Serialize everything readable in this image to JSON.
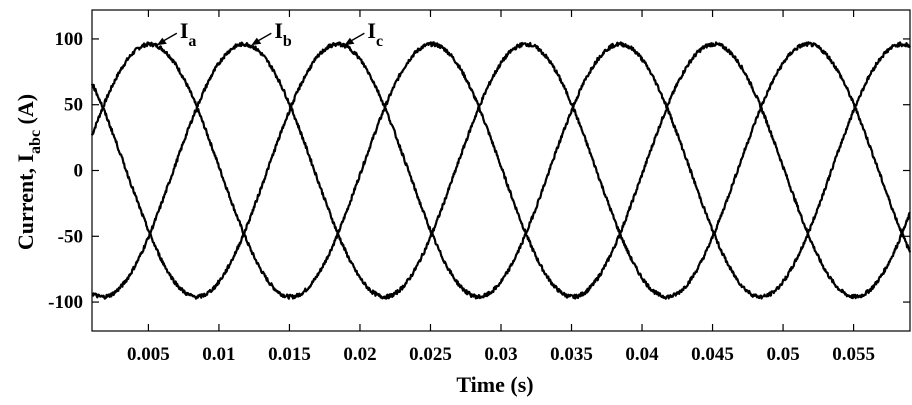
{
  "chart_data": {
    "type": "line",
    "xlabel": "Time (s)",
    "ylabel": {
      "main": "Current, I",
      "sub": "abc",
      "unit": "(A)"
    },
    "xlim": [
      0.001,
      0.059
    ],
    "ylim": [
      -122,
      122
    ],
    "xticks": [
      0.005,
      0.01,
      0.015,
      0.02,
      0.025,
      0.03,
      0.035,
      0.04,
      0.045,
      0.05,
      0.055
    ],
    "xtick_labels": [
      "0.005",
      "0.01",
      "0.015",
      "0.02",
      "0.025",
      "0.03",
      "0.035",
      "0.04",
      "0.045",
      "0.05",
      "0.055"
    ],
    "yticks": [
      100,
      50,
      0,
      -50,
      -100
    ],
    "ytick_labels": [
      "100",
      "50",
      "0",
      "-50",
      "-100"
    ],
    "grid": false,
    "series": [
      {
        "name": "a",
        "amplitude": 96,
        "frequency_hz": 50,
        "peak_time_s": 0.0051,
        "noise_amplitude": 1.5
      },
      {
        "name": "b",
        "amplitude": 96,
        "frequency_hz": 50,
        "peak_time_s": 0.01177,
        "noise_amplitude": 1.5
      },
      {
        "name": "c",
        "amplitude": 96,
        "frequency_hz": 50,
        "peak_time_s": 0.01843,
        "noise_amplitude": 1.5
      }
    ],
    "annotations": [
      {
        "label": "I",
        "sub": "a",
        "series": "a",
        "point_x": 0.0051,
        "point_y": 96
      },
      {
        "label": "I",
        "sub": "b",
        "series": "b",
        "point_x": 0.0118,
        "point_y": 96
      },
      {
        "label": "I",
        "sub": "c",
        "series": "c",
        "point_x": 0.0184,
        "point_y": 96
      }
    ]
  }
}
